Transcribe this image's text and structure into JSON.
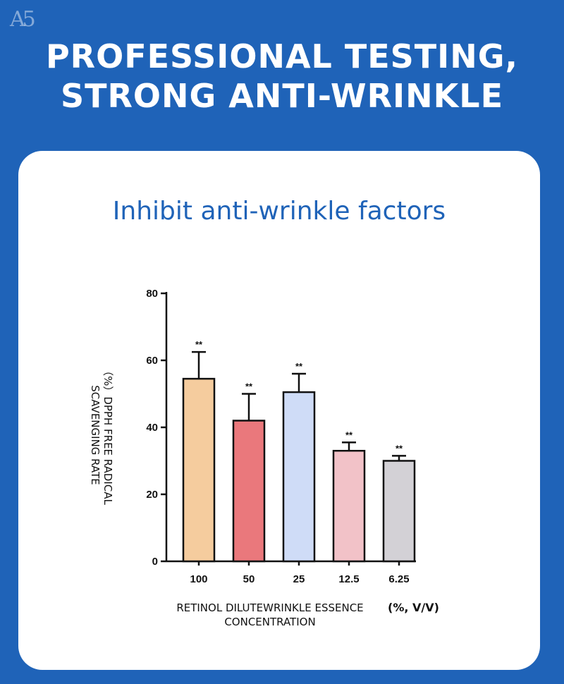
{
  "header": {
    "logo": "A5",
    "title_line1": "PROFESSIONAL TESTING,",
    "title_line2": "STRONG ANTI-WRINKLE"
  },
  "card": {
    "title": "Inhibit anti-wrinkle factors"
  },
  "chart_data": {
    "type": "bar",
    "categories": [
      "100",
      "50",
      "25",
      "12.5",
      "6.25"
    ],
    "values": [
      54.5,
      42,
      50.5,
      33,
      30
    ],
    "errors": [
      8,
      8,
      5.5,
      2.5,
      1.5
    ],
    "annotations": [
      "**",
      "**",
      "**",
      "**",
      "**"
    ],
    "colors": [
      "#f5cc9e",
      "#ea787c",
      "#cfdcf7",
      "#f2c2c8",
      "#d3d1d6"
    ],
    "ylim": [
      0,
      80
    ],
    "yticks": [
      0,
      20,
      40,
      60,
      80
    ],
    "ylabel_prefix": "（%）",
    "ylabel_line1": "DPPH FREE RADICAL",
    "ylabel_line2": "SCAVENGING RATE",
    "xlabel_line1": "RETINOL DILUTEWRINKLE ESSENCE",
    "xlabel_line2": "CONCENTRATION",
    "xlabel_unit": "(%, V/V)",
    "grid": false,
    "legend": "none"
  },
  "colors": {
    "background": "#1f63b8",
    "card": "#ffffff",
    "accent": "#1f63b8"
  }
}
